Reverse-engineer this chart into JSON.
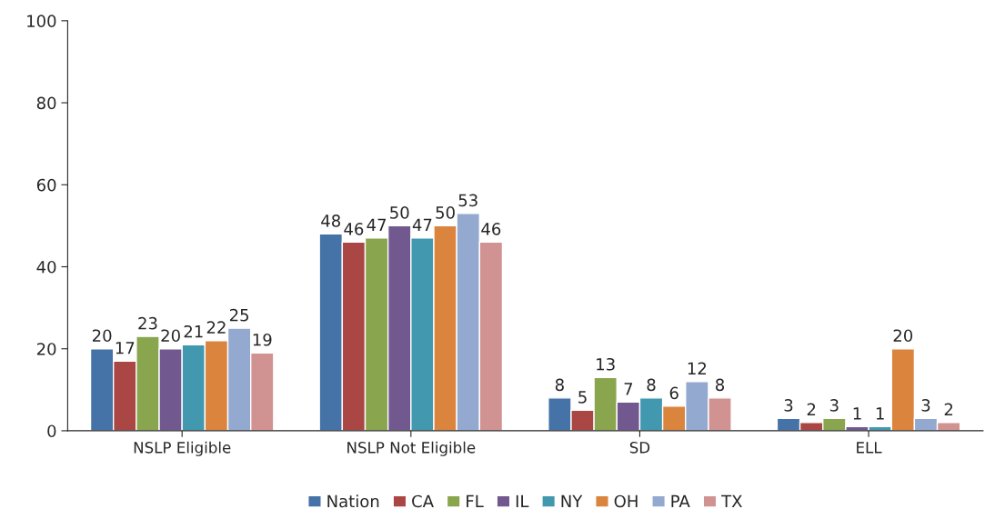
{
  "chart_data": {
    "type": "bar",
    "categories": [
      "NSLP Eligible",
      "NSLP Not Eligible",
      "SD",
      "ELL"
    ],
    "series": [
      {
        "name": "Nation",
        "color": "#4572a7",
        "values": [
          20,
          48,
          8,
          3
        ]
      },
      {
        "name": "CA",
        "color": "#aa4643",
        "values": [
          17,
          46,
          5,
          2
        ]
      },
      {
        "name": "FL",
        "color": "#89a54e",
        "values": [
          23,
          47,
          13,
          3
        ]
      },
      {
        "name": "IL",
        "color": "#71588f",
        "values": [
          20,
          50,
          7,
          1
        ]
      },
      {
        "name": "NY",
        "color": "#4198af",
        "values": [
          21,
          47,
          8,
          1
        ]
      },
      {
        "name": "OH",
        "color": "#db843d",
        "values": [
          22,
          50,
          6,
          20
        ]
      },
      {
        "name": "PA",
        "color": "#93a9cf",
        "values": [
          25,
          53,
          12,
          3
        ]
      },
      {
        "name": "TX",
        "color": "#d19392",
        "values": [
          19,
          46,
          8,
          2
        ]
      }
    ],
    "ylim": [
      0,
      100
    ],
    "yticks": [
      0,
      20,
      40,
      60,
      80,
      100
    ],
    "data_labels": true,
    "grid": false,
    "legend": "bottom"
  }
}
